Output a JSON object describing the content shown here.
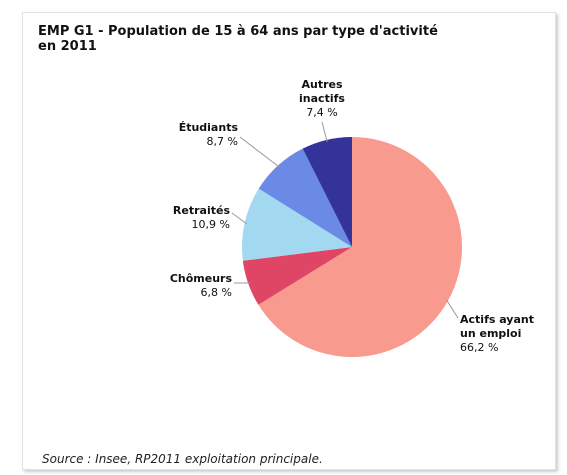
{
  "chart_data": {
    "type": "pie",
    "title": "EMP G1 - Population de 15 à 64 ans par type d'activité en 2011",
    "categories": [
      "Actifs ayant\nun emploi",
      "Chômeurs",
      "Retraités",
      "Étudiants",
      "Autres\ninactifs"
    ],
    "values": [
      66.2,
      6.8,
      10.9,
      8.7,
      7.4
    ],
    "value_labels": [
      "66,2 %",
      "6,8 %",
      "10,9 %",
      "8,7 %",
      "7,4 %"
    ],
    "colors": [
      "#f99a8e",
      "#df4565",
      "#a3d9f0",
      "#6a8ae6",
      "#333399"
    ],
    "source": "Source : Insee, RP2011 exploitation principale."
  }
}
